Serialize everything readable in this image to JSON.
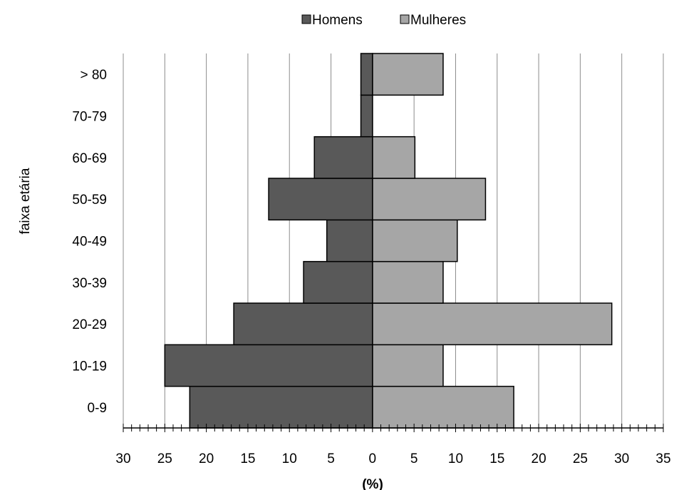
{
  "chart_data": {
    "type": "bar",
    "orientation": "horizontal",
    "stacked_diverging": true,
    "categories": [
      "0-9",
      "10-19",
      "20-29",
      "30-39",
      "40-49",
      "50-59",
      "60-69",
      "70-79",
      "> 80"
    ],
    "series": [
      {
        "name": "Homens",
        "values": [
          22,
          25,
          16.7,
          8.3,
          5.5,
          12.5,
          7,
          1.4,
          1.4
        ],
        "color": "#595959"
      },
      {
        "name": "Mulheres",
        "values": [
          17,
          8.5,
          28.8,
          8.5,
          10.2,
          13.6,
          5.1,
          0,
          8.5
        ],
        "color": "#a6a6a6"
      }
    ],
    "title": "",
    "xlabel": "(%)",
    "ylabel": "faixa etária",
    "xlim": [
      -30,
      35
    ],
    "xticks": [
      -30,
      -25,
      -20,
      -15,
      -10,
      -5,
      0,
      5,
      10,
      15,
      20,
      25,
      30,
      35
    ],
    "xtick_labels": [
      "30",
      "25",
      "20",
      "15",
      "10",
      "5",
      "0",
      "5",
      "10",
      "15",
      "20",
      "25",
      "30",
      "35"
    ],
    "grid": "vertical",
    "legend": "top-center"
  }
}
